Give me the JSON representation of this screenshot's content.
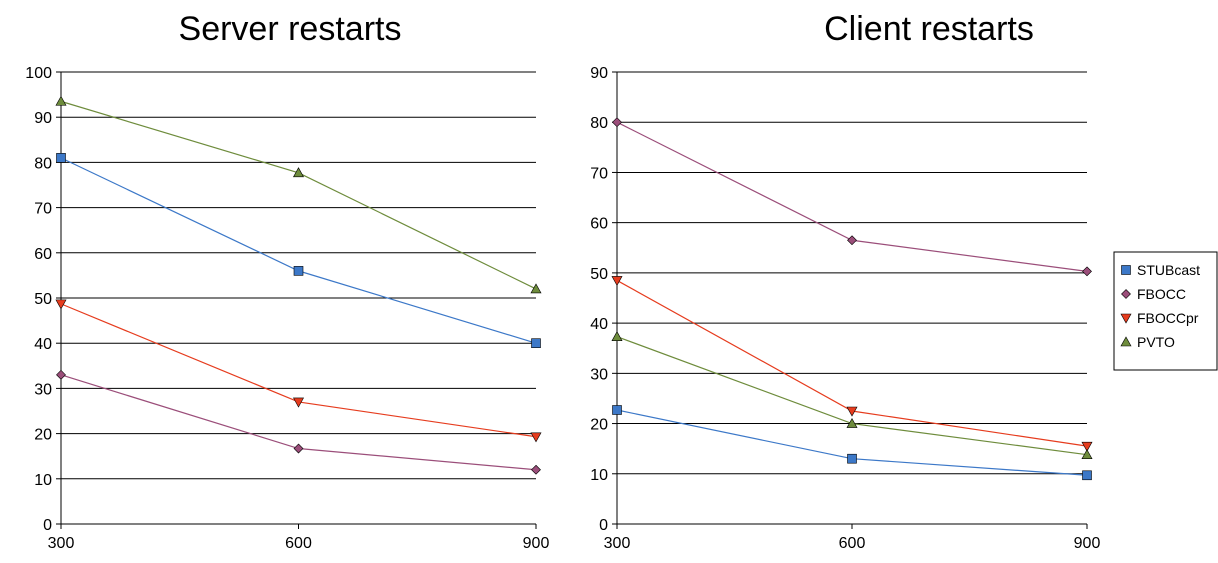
{
  "chart_data": [
    {
      "type": "line",
      "title": "Server restarts",
      "x": [
        300,
        600,
        900
      ],
      "xlabel": "",
      "ylabel": "",
      "ylim": [
        0,
        100
      ],
      "yticks": [
        0,
        10,
        20,
        30,
        40,
        50,
        60,
        70,
        80,
        90,
        100
      ],
      "grid": true,
      "series": [
        {
          "name": "STUBcast",
          "color": "#3C78C8",
          "marker": "square",
          "values": [
            81,
            56,
            40
          ]
        },
        {
          "name": "FBOCC",
          "color": "#9B4E7A",
          "marker": "diamond",
          "values": [
            33,
            16.7,
            12
          ]
        },
        {
          "name": "FBOCCpr",
          "color": "#E63C1E",
          "marker": "triangle-down",
          "values": [
            48.7,
            27,
            19.3
          ]
        },
        {
          "name": "PVTO",
          "color": "#6E8C3C",
          "marker": "triangle-up",
          "values": [
            93.5,
            77.7,
            52
          ]
        }
      ]
    },
    {
      "type": "line",
      "title": "Client restarts",
      "x": [
        300,
        600,
        900
      ],
      "xlabel": "",
      "ylabel": "",
      "ylim": [
        0,
        90
      ],
      "yticks": [
        0,
        10,
        20,
        30,
        40,
        50,
        60,
        70,
        80,
        90
      ],
      "grid": true,
      "legend": "right",
      "series": [
        {
          "name": "STUBcast",
          "color": "#3C78C8",
          "marker": "square",
          "values": [
            22.7,
            13,
            9.7
          ]
        },
        {
          "name": "FBOCC",
          "color": "#9B4E7A",
          "marker": "diamond",
          "values": [
            80,
            56.5,
            50.3
          ]
        },
        {
          "name": "FBOCCpr",
          "color": "#E63C1E",
          "marker": "triangle-down",
          "values": [
            48.5,
            22.5,
            15.5
          ]
        },
        {
          "name": "PVTO",
          "color": "#6E8C3C",
          "marker": "triangle-up",
          "values": [
            37.3,
            20,
            13.8
          ]
        }
      ]
    }
  ]
}
